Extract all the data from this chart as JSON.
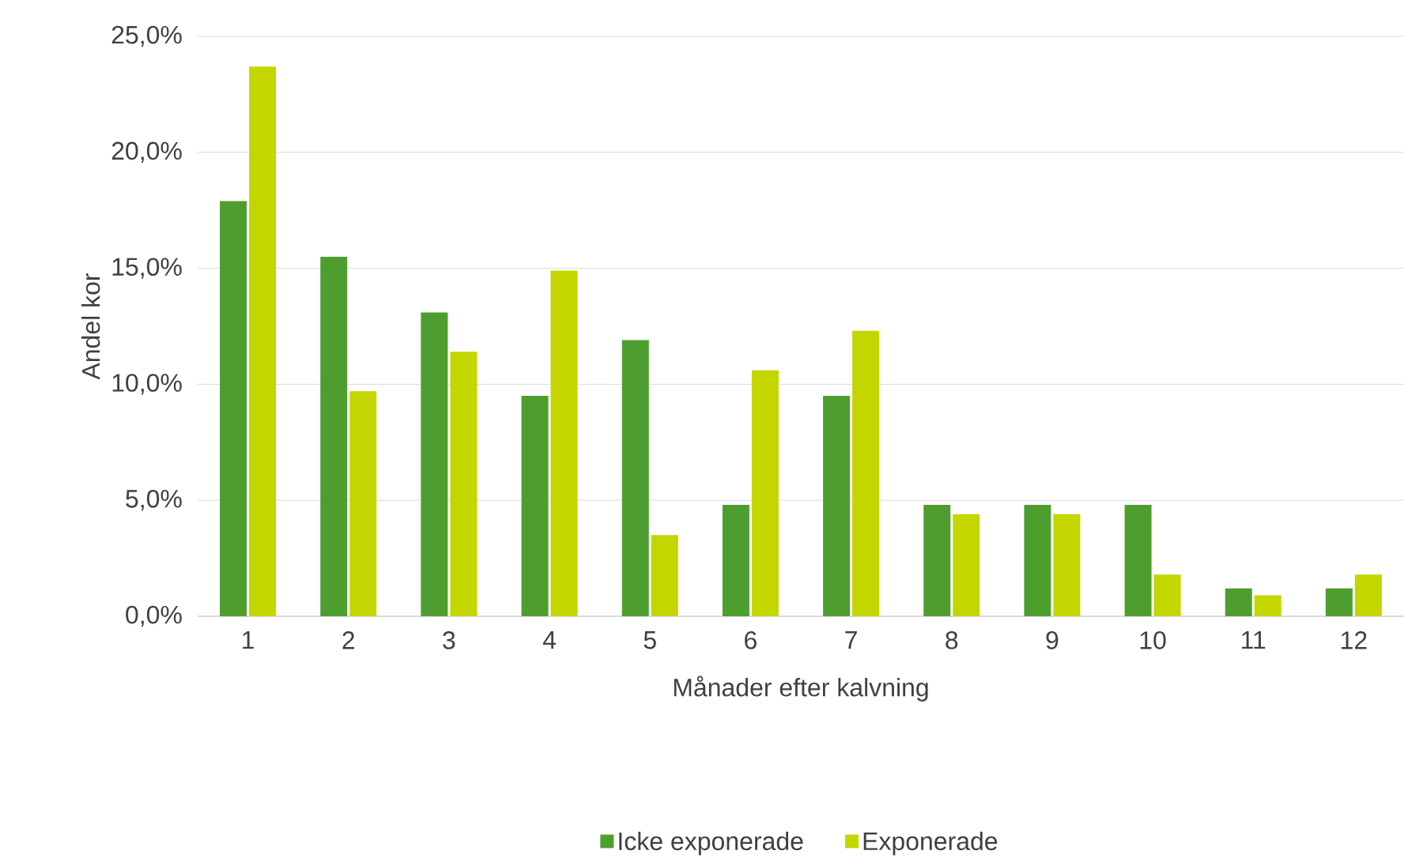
{
  "chart_data": {
    "type": "bar",
    "xlabel": "Månader efter kalvning",
    "ylabel": "Andel kor",
    "categories": [
      "1",
      "2",
      "3",
      "4",
      "5",
      "6",
      "7",
      "8",
      "9",
      "10",
      "11",
      "12"
    ],
    "series": [
      {
        "name": "Icke exponerade",
        "color": "#4e9e2f",
        "values": [
          17.9,
          15.5,
          13.1,
          9.5,
          11.9,
          4.8,
          9.5,
          4.8,
          4.8,
          4.8,
          1.2,
          1.2
        ]
      },
      {
        "name": "Exponerade",
        "color": "#c3d600",
        "values": [
          23.7,
          9.7,
          11.4,
          14.9,
          3.5,
          10.6,
          12.3,
          4.4,
          4.4,
          1.8,
          0.9,
          1.8
        ]
      }
    ],
    "ylim": [
      0,
      25
    ],
    "yticks": [
      {
        "value": 0,
        "label": "0,0%"
      },
      {
        "value": 5,
        "label": "5,0%"
      },
      {
        "value": 10,
        "label": "10,0%"
      },
      {
        "value": 15,
        "label": "15,0%"
      },
      {
        "value": 20,
        "label": "20,0%"
      },
      {
        "value": 25,
        "label": "25,0%"
      }
    ],
    "grid": "y",
    "legend": "bottom"
  }
}
